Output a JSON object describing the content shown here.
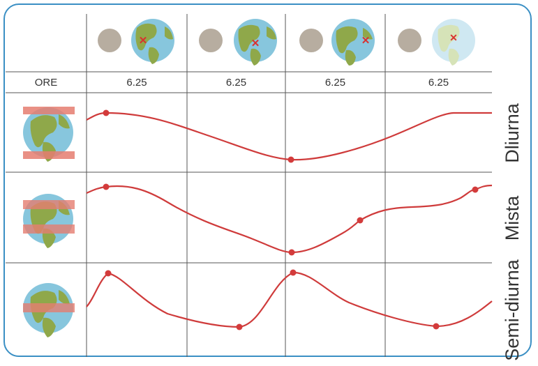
{
  "header": {
    "ore_label": "ORE",
    "hours": [
      "6.25",
      "6.25",
      "6.25",
      "6.25"
    ]
  },
  "rows": [
    {
      "label": "Dliurna"
    },
    {
      "label": "Mista"
    },
    {
      "label": "Semi-diurna"
    }
  ],
  "colors": {
    "frame": "#3a8fc4",
    "curve": "#cf3b3b",
    "moon": "#b7ada0",
    "ocean": "#87c6dd",
    "land": "#8fa84a",
    "band": "#e57d70",
    "marker": "#d9312f",
    "grid": "#555555"
  },
  "icons": {
    "moon": "moon-icon",
    "earth": "earth-icon",
    "marker": "x-marker-icon"
  }
}
